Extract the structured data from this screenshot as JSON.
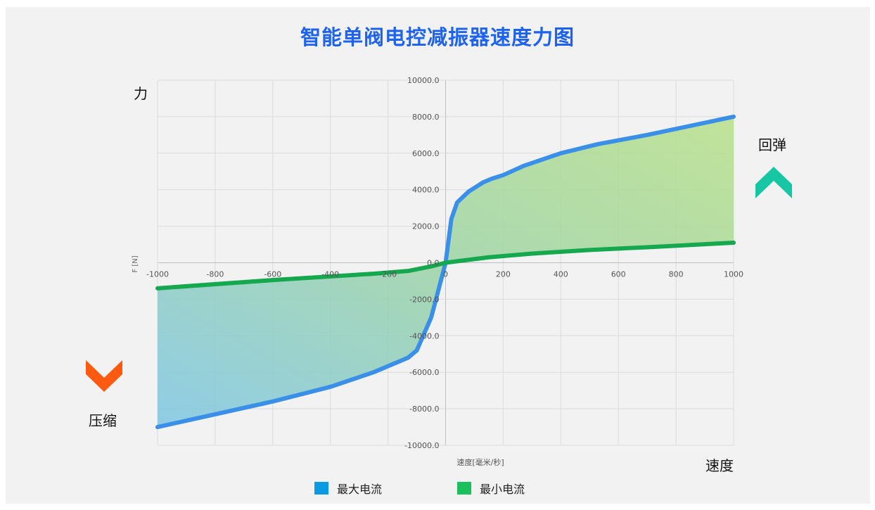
{
  "chart_data": {
    "type": "area",
    "title": "智能单阀电控减振器速度力图",
    "xlabel": "速度[毫米/秒]",
    "ylabel": "F [N]",
    "xlim": [
      -1000,
      1000
    ],
    "ylim": [
      -10000,
      10000
    ],
    "x_ticks": [
      "-1000",
      "-800",
      "-600",
      "-400",
      "-200",
      "0",
      "200",
      "400",
      "600",
      "800",
      "1000"
    ],
    "y_ticks": [
      "10000.0",
      "8000.0",
      "6000.0",
      "4000.0",
      "2000.0",
      "0.0",
      "-2000.0",
      "-4000.0",
      "-6000.0",
      "-8000.0",
      "-10000.0"
    ],
    "grid": true,
    "legend_position": "bottom-center",
    "series": [
      {
        "name": "最大电流",
        "color": "#3a8fe8",
        "x": [
          -1000,
          -800,
          -600,
          -400,
          -250,
          -130,
          -100,
          -50,
          -20,
          0,
          20,
          40,
          60,
          80,
          100,
          130,
          160,
          200,
          270,
          400,
          530,
          700,
          850,
          1000
        ],
        "y": [
          -9000,
          -8300,
          -7600,
          -6800,
          -6000,
          -5200,
          -4800,
          -3000,
          -1200,
          0,
          2400,
          3300,
          3600,
          3900,
          4100,
          4400,
          4600,
          4800,
          5300,
          6000,
          6500,
          7000,
          7500,
          8000
        ]
      },
      {
        "name": "最小电流",
        "color": "#16a84f",
        "x": [
          -1000,
          -600,
          -250,
          -130,
          -50,
          0,
          50,
          150,
          300,
          500,
          700,
          1000
        ],
        "y": [
          -1400,
          -950,
          -600,
          -450,
          -200,
          0,
          100,
          300,
          500,
          700,
          850,
          1100
        ]
      }
    ]
  },
  "labels": {
    "force": "力",
    "rebound": "回弹",
    "compression": "压缩",
    "speed": "速度"
  },
  "colors": {
    "rebound_arrow": "#17c7a4",
    "compression_arrow": "#ff5a0f",
    "title": "#1e63f0"
  },
  "legend": [
    {
      "label": "最大电流",
      "color": "#0a9be3"
    },
    {
      "label": "最小电流",
      "color": "#19c05c"
    }
  ]
}
